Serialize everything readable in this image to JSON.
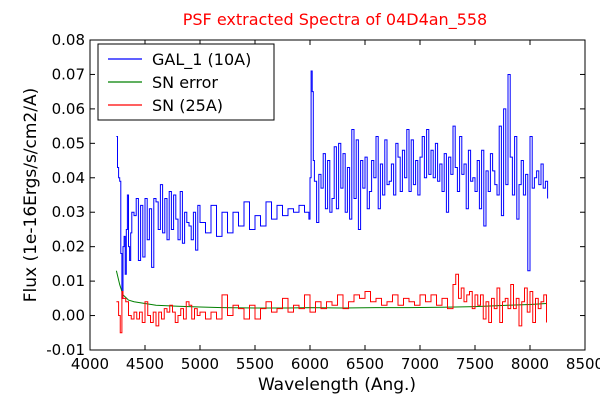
{
  "chart_data": {
    "type": "line",
    "title": "PSF extracted Spectra of 04D4an_558",
    "title_color": "#ff0000",
    "xlabel": "Wavelength (Ang.)",
    "ylabel": "Flux (1e-16Ergs/s/cm2/A)",
    "xlim": [
      4000,
      8500
    ],
    "ylim": [
      -0.01,
      0.08
    ],
    "x_ticks": [
      4000,
      4500,
      5000,
      5500,
      6000,
      6500,
      7000,
      7500,
      8000,
      8500
    ],
    "x_tick_labels": [
      "4000",
      "4500",
      "5000",
      "5500",
      "6000",
      "6500",
      "7000",
      "7500",
      "8000",
      "8500"
    ],
    "y_ticks": [
      -0.01,
      0.0,
      0.01,
      0.02,
      0.03,
      0.04,
      0.05,
      0.06,
      0.07,
      0.08
    ],
    "y_tick_labels": [
      "-0.01",
      "0.00",
      "0.01",
      "0.02",
      "0.03",
      "0.04",
      "0.05",
      "0.06",
      "0.07",
      "0.08"
    ],
    "grid": false,
    "legend_position": "top-left",
    "series": [
      {
        "name": "GAL_1 (10A)",
        "color": "#0000ff",
        "step": true,
        "x": [
          4240,
          4250,
          4260,
          4270,
          4280,
          4290,
          4300,
          4310,
          4320,
          4330,
          4340,
          4350,
          4360,
          4370,
          4380,
          4400,
          4420,
          4440,
          4460,
          4480,
          4500,
          4520,
          4540,
          4560,
          4580,
          4600,
          4620,
          4640,
          4660,
          4680,
          4700,
          4720,
          4740,
          4760,
          4780,
          4800,
          4820,
          4840,
          4860,
          4880,
          4900,
          4920,
          4940,
          4960,
          4980,
          5000,
          5050,
          5100,
          5150,
          5200,
          5250,
          5300,
          5350,
          5400,
          5450,
          5500,
          5550,
          5600,
          5650,
          5700,
          5750,
          5800,
          5850,
          5900,
          5950,
          5990,
          6000,
          6010,
          6020,
          6030,
          6040,
          6060,
          6080,
          6100,
          6120,
          6140,
          6160,
          6180,
          6200,
          6220,
          6240,
          6260,
          6280,
          6300,
          6320,
          6340,
          6360,
          6380,
          6400,
          6420,
          6440,
          6460,
          6480,
          6500,
          6520,
          6540,
          6560,
          6580,
          6600,
          6620,
          6640,
          6660,
          6680,
          6700,
          6720,
          6740,
          6760,
          6780,
          6800,
          6820,
          6840,
          6860,
          6880,
          6900,
          6920,
          6940,
          6960,
          6980,
          7000,
          7020,
          7040,
          7060,
          7080,
          7100,
          7120,
          7140,
          7160,
          7180,
          7200,
          7220,
          7240,
          7260,
          7280,
          7300,
          7320,
          7340,
          7360,
          7380,
          7400,
          7420,
          7440,
          7460,
          7480,
          7500,
          7520,
          7540,
          7560,
          7580,
          7600,
          7620,
          7640,
          7660,
          7680,
          7700,
          7720,
          7740,
          7760,
          7780,
          7800,
          7820,
          7840,
          7860,
          7880,
          7900,
          7920,
          7940,
          7960,
          7980,
          8000,
          8020,
          8040,
          8060,
          8080,
          8100,
          8120,
          8140,
          8160
        ],
        "y": [
          0.052,
          0.043,
          0.04,
          0.039,
          0.018,
          0.005,
          0.02,
          0.023,
          0.012,
          0.025,
          0.035,
          0.02,
          0.016,
          0.024,
          0.03,
          0.029,
          0.034,
          0.016,
          0.032,
          0.017,
          0.034,
          0.022,
          0.031,
          0.014,
          0.034,
          0.033,
          0.025,
          0.038,
          0.024,
          0.034,
          0.022,
          0.036,
          0.025,
          0.035,
          0.028,
          0.022,
          0.036,
          0.021,
          0.03,
          0.027,
          0.026,
          0.022,
          0.03,
          0.019,
          0.032,
          0.027,
          0.024,
          0.032,
          0.023,
          0.03,
          0.024,
          0.03,
          0.026,
          0.033,
          0.025,
          0.029,
          0.026,
          0.033,
          0.028,
          0.032,
          0.029,
          0.031,
          0.03,
          0.032,
          0.03,
          0.028,
          0.04,
          0.071,
          0.065,
          0.045,
          0.039,
          0.027,
          0.041,
          0.037,
          0.047,
          0.031,
          0.045,
          0.03,
          0.034,
          0.049,
          0.031,
          0.05,
          0.037,
          0.047,
          0.03,
          0.043,
          0.028,
          0.054,
          0.034,
          0.051,
          0.025,
          0.045,
          0.037,
          0.046,
          0.031,
          0.036,
          0.045,
          0.04,
          0.052,
          0.031,
          0.044,
          0.035,
          0.051,
          0.038,
          0.039,
          0.044,
          0.035,
          0.05,
          0.046,
          0.036,
          0.048,
          0.04,
          0.054,
          0.036,
          0.051,
          0.038,
          0.045,
          0.035,
          0.046,
          0.052,
          0.04,
          0.054,
          0.041,
          0.048,
          0.04,
          0.05,
          0.039,
          0.044,
          0.036,
          0.047,
          0.03,
          0.046,
          0.041,
          0.055,
          0.043,
          0.036,
          0.052,
          0.041,
          0.044,
          0.031,
          0.048,
          0.039,
          0.04,
          0.036,
          0.045,
          0.031,
          0.048,
          0.026,
          0.042,
          0.036,
          0.047,
          0.042,
          0.038,
          0.035,
          0.055,
          0.029,
          0.06,
          0.038,
          0.07,
          0.046,
          0.035,
          0.052,
          0.028,
          0.038,
          0.045,
          0.035,
          0.041,
          0.013,
          0.052,
          0.037,
          0.04,
          0.042,
          0.038,
          0.044,
          0.037,
          0.039,
          0.034
        ]
      },
      {
        "name": "SN error",
        "color": "#008000",
        "step": false,
        "x": [
          4240,
          4270,
          4300,
          4350,
          4400,
          4500,
          4600,
          4800,
          5000,
          5200,
          5500,
          5800,
          6000,
          6300,
          6600,
          6900,
          7200,
          7500,
          7800,
          8000,
          8150
        ],
        "y": [
          0.013,
          0.009,
          0.006,
          0.0045,
          0.004,
          0.0035,
          0.003,
          0.0027,
          0.0025,
          0.0023,
          0.0022,
          0.0022,
          0.0023,
          0.0022,
          0.0023,
          0.0023,
          0.0024,
          0.0026,
          0.003,
          0.0032,
          0.0035
        ]
      },
      {
        "name": "SN (25A)",
        "color": "#ff0000",
        "step": true,
        "x": [
          4240,
          4260,
          4275,
          4290,
          4300,
          4325,
          4350,
          4375,
          4400,
          4425,
          4450,
          4475,
          4500,
          4525,
          4550,
          4575,
          4600,
          4625,
          4650,
          4675,
          4700,
          4725,
          4750,
          4775,
          4800,
          4825,
          4850,
          4875,
          4900,
          4925,
          4950,
          4975,
          5000,
          5050,
          5100,
          5150,
          5200,
          5250,
          5300,
          5350,
          5400,
          5450,
          5500,
          5550,
          5600,
          5650,
          5700,
          5750,
          5800,
          5850,
          5900,
          5950,
          6000,
          6050,
          6100,
          6150,
          6200,
          6250,
          6300,
          6350,
          6400,
          6450,
          6500,
          6550,
          6600,
          6650,
          6700,
          6750,
          6800,
          6850,
          6900,
          6950,
          7000,
          7050,
          7100,
          7150,
          7200,
          7250,
          7300,
          7325,
          7350,
          7375,
          7400,
          7425,
          7450,
          7475,
          7500,
          7525,
          7550,
          7575,
          7600,
          7625,
          7650,
          7675,
          7700,
          7725,
          7750,
          7775,
          7800,
          7825,
          7850,
          7875,
          7900,
          7925,
          7950,
          7975,
          8000,
          8025,
          8050,
          8075,
          8100,
          8125,
          8150
        ],
        "y": [
          0.004,
          0.0,
          -0.005,
          0.007,
          0.005,
          0.004,
          0.0,
          -0.001,
          0.001,
          -0.001,
          0.001,
          -0.002,
          0.004,
          0.0,
          -0.002,
          0.001,
          -0.003,
          0.001,
          -0.001,
          0.002,
          0.001,
          0.003,
          0.001,
          -0.002,
          0.0,
          0.002,
          -0.001,
          0.004,
          0.003,
          -0.001,
          0.002,
          0.0,
          0.001,
          -0.001,
          0.001,
          -0.001,
          0.006,
          0.0,
          0.003,
          0.002,
          -0.001,
          0.003,
          -0.001,
          0.002,
          0.004,
          0.001,
          0.002,
          0.005,
          0.001,
          0.003,
          0.002,
          0.006,
          0.001,
          0.004,
          0.002,
          0.004,
          0.003,
          0.006,
          0.002,
          0.004,
          0.006,
          0.005,
          0.007,
          0.004,
          0.005,
          0.003,
          0.004,
          0.006,
          0.003,
          0.005,
          0.004,
          0.003,
          0.006,
          0.004,
          0.006,
          0.003,
          0.005,
          0.002,
          0.009,
          0.012,
          0.005,
          0.008,
          0.004,
          0.006,
          0.007,
          0.002,
          0.006,
          0.003,
          0.006,
          -0.001,
          0.004,
          -0.002,
          0.005,
          0.002,
          0.008,
          -0.002,
          0.004,
          0.005,
          0.002,
          0.009,
          0.002,
          0.005,
          -0.003,
          0.004,
          0.008,
          0.001,
          0.007,
          -0.002,
          0.005,
          0.002,
          0.004,
          0.006,
          -0.002
        ]
      }
    ]
  }
}
